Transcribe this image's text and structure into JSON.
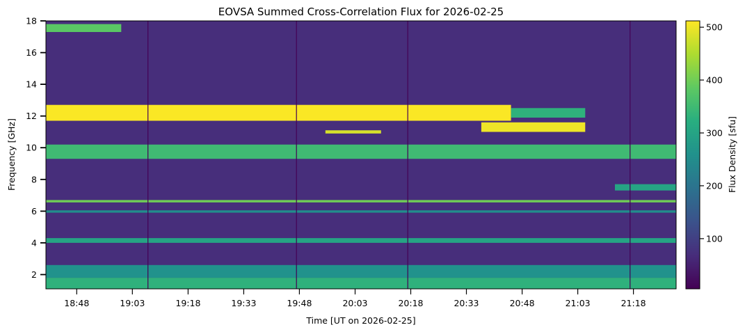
{
  "chart_data": {
    "type": "heatmap",
    "title": "EOVSA Summed Cross-Correlation Flux for 2026-02-25",
    "xlabel": "Time [UT on 2026-02-25]",
    "ylabel": "Frequency [GHz]",
    "x_ticks": [
      "18:48",
      "19:03",
      "19:18",
      "19:33",
      "19:48",
      "20:03",
      "20:18",
      "20:33",
      "20:48",
      "21:03",
      "21:18"
    ],
    "x_tick_minutes": [
      1128,
      1143,
      1158,
      1173,
      1188,
      1203,
      1218,
      1233,
      1248,
      1263,
      1278
    ],
    "xlim_minutes": [
      1119.7,
      1289.5
    ],
    "y_ticks": [
      2,
      4,
      6,
      8,
      10,
      12,
      14,
      16,
      18
    ],
    "ylim": [
      1.1,
      18.0
    ],
    "colorbar": {
      "label": "Flux Density [sfu]",
      "ticks": [
        100,
        200,
        300,
        400,
        500
      ],
      "range": [
        5,
        512
      ],
      "colormap": "viridis"
    },
    "background_flux_sfu": 70,
    "data_gaps_minutes": [
      1147.2,
      1187.2,
      1217.2,
      1277.1
    ],
    "features": [
      {
        "name": "strong 11.7-12.7 GHz band",
        "f_low": 11.7,
        "f_high": 12.7,
        "t_start": 1119.7,
        "t_end": 1245,
        "flux": 510
      },
      {
        "name": "12 GHz band taper",
        "f_low": 11.9,
        "f_high": 12.5,
        "t_start": 1245,
        "t_end": 1265,
        "flux": 330
      },
      {
        "name": "11.3 GHz patch",
        "f_low": 11.0,
        "f_high": 11.6,
        "t_start": 1237,
        "t_end": 1265,
        "flux": 500
      },
      {
        "name": "11 GHz streak",
        "f_low": 10.9,
        "f_high": 11.1,
        "t_start": 1195,
        "t_end": 1210,
        "flux": 480
      },
      {
        "name": "17.5 GHz band",
        "f_low": 17.3,
        "f_high": 17.8,
        "t_start": 1119.7,
        "t_end": 1140,
        "flux": 380
      },
      {
        "name": "9.7 GHz speckle",
        "f_low": 9.3,
        "f_high": 10.2,
        "t_start": 1119.7,
        "t_end": 1289.5,
        "flux": 350
      },
      {
        "name": "7.5 GHz band",
        "f_low": 7.3,
        "f_high": 7.7,
        "t_start": 1273,
        "t_end": 1289.5,
        "flux": 300
      },
      {
        "name": "6.6 GHz line",
        "f_low": 6.55,
        "f_high": 6.7,
        "t_start": 1119.7,
        "t_end": 1289.5,
        "flux": 400
      },
      {
        "name": "6 GHz line",
        "f_low": 5.9,
        "f_high": 6.05,
        "t_start": 1119.7,
        "t_end": 1289.5,
        "flux": 250
      },
      {
        "name": "4.2 GHz band",
        "f_low": 4.0,
        "f_high": 4.3,
        "t_start": 1119.7,
        "t_end": 1289.5,
        "flux": 300
      },
      {
        "name": "2.2 GHz band",
        "f_low": 1.8,
        "f_high": 2.6,
        "t_start": 1119.7,
        "t_end": 1289.5,
        "flux": 260
      },
      {
        "name": "1.5 GHz band",
        "f_low": 1.1,
        "f_high": 1.8,
        "t_start": 1119.7,
        "t_end": 1289.5,
        "flux": 330
      }
    ]
  }
}
